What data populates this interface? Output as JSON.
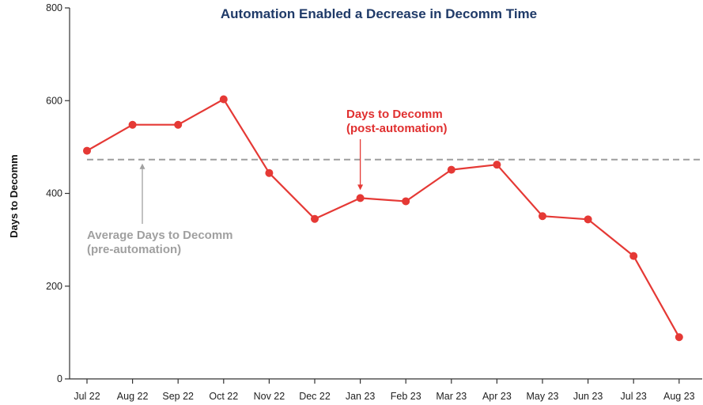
{
  "colors": {
    "series": "#e53935",
    "average_line": "#9e9e9e",
    "title": "#1f3a68",
    "axis": "#333333",
    "annotation_gray": "#a0a0a0"
  },
  "chart_data": {
    "type": "line",
    "title": "Automation Enabled a Decrease in Decomm Time",
    "xlabel": "",
    "ylabel": "Days to Decomm",
    "ylim": [
      0,
      800
    ],
    "yticks": [
      0,
      200,
      400,
      600,
      800
    ],
    "grid": false,
    "categories": [
      "Jul 22",
      "Aug 22",
      "Sep 22",
      "Oct 22",
      "Nov 22",
      "Dec 22",
      "Jan 23",
      "Feb 23",
      "Mar 23",
      "Apr 23",
      "May 23",
      "Jun 23",
      "Jul 23",
      "Aug 23"
    ],
    "series": [
      {
        "values": [
          492,
          548,
          548,
          603,
          444,
          345,
          390,
          383,
          451,
          462,
          351,
          344,
          265,
          90
        ]
      }
    ],
    "reference_line": {
      "value": 473
    },
    "annotations": {
      "series": {
        "lines": [
          "Days to Decomm",
          "(post-automation)"
        ]
      },
      "average": {
        "lines": [
          "Average Days to Decomm",
          "(pre-automation)"
        ]
      }
    }
  }
}
